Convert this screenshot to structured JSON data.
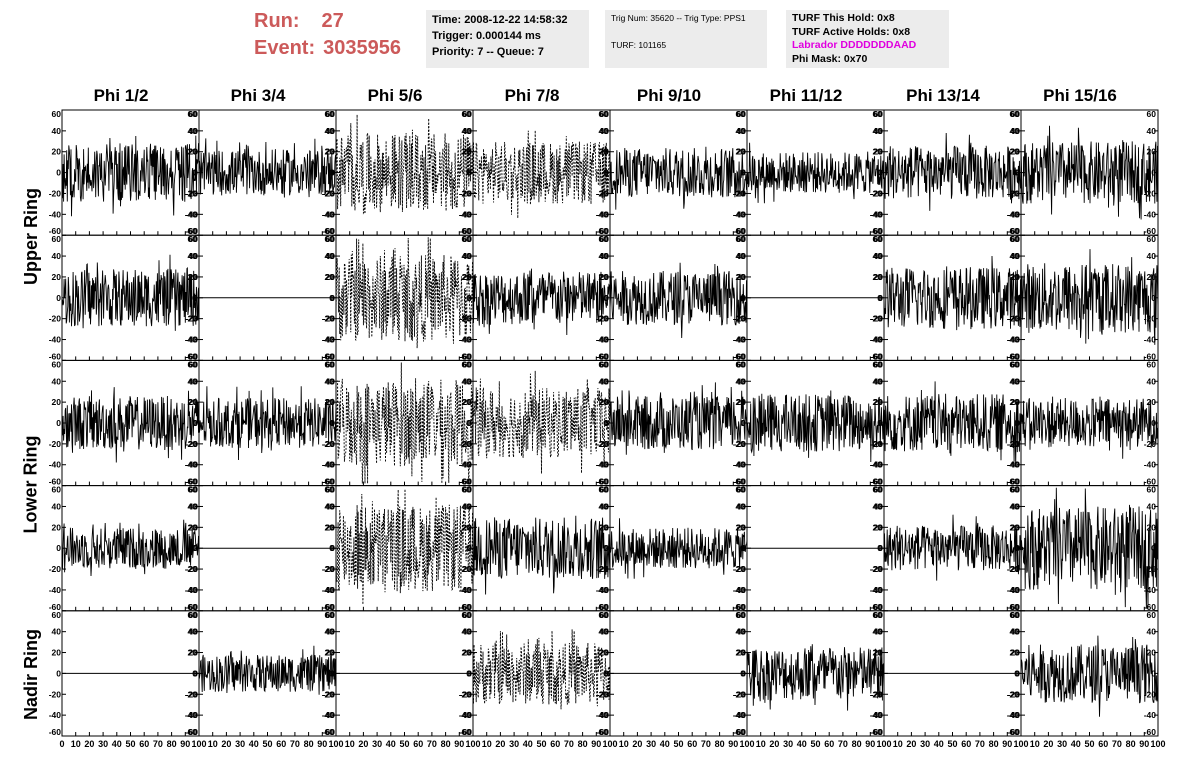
{
  "header": {
    "run_label": "Run:",
    "run_value": "27",
    "event_label": "Event:",
    "event_value": "3035956"
  },
  "info_box_1": {
    "time": "Time: 2008-12-22 14:58:32",
    "trigger": "Trigger: 0.000144 ms",
    "priority": "Priority: 7 -- Queue: 7"
  },
  "info_box_2": {
    "trig": "Trig Num: 35620 -- Trig Type: PPS1",
    "turf": "TURF: 101165"
  },
  "info_box_3": {
    "this_hold": "TURF This Hold: 0x8",
    "active_holds": "TURF Active Holds: 0x8",
    "labrador": "Labrador DDDDDDDAAD",
    "phi_mask": "Phi Mask: 0x70"
  },
  "colors": {
    "run_text": "#cc5a5a",
    "labrador_text": "#e000e0",
    "info_bg": "#ececec",
    "trace": "#000000"
  },
  "columns": [
    "Phi 1/2",
    "Phi 3/4",
    "Phi 5/6",
    "Phi 7/8",
    "Phi 9/10",
    "Phi 11/12",
    "Phi 13/14",
    "Phi 15/16"
  ],
  "ring_labels": [
    "Upper Ring",
    "Lower Ring",
    "Nadir Ring"
  ],
  "chart_data": {
    "type": "line",
    "title": "",
    "xlim": [
      0,
      100
    ],
    "ylim": [
      -60,
      60
    ],
    "x_ticks": [
      0,
      10,
      20,
      30,
      40,
      50,
      60,
      70,
      80,
      90,
      100
    ],
    "y_ticks": [
      -60,
      -40,
      -20,
      0,
      20,
      40,
      60
    ],
    "x_tick_labels_first_column": [
      "0",
      "10",
      "20",
      "30",
      "40",
      "50",
      "60",
      "70",
      "80",
      "90",
      "100"
    ],
    "x_tick_labels_other_columns": [
      "10",
      "20",
      "30",
      "40",
      "50",
      "60",
      "70",
      "80",
      "90",
      "100"
    ],
    "grid": false,
    "rows": [
      {
        "ring": "Upper Ring",
        "panels": [
          {
            "style": "solid",
            "amplitude": 28
          },
          {
            "style": "solid",
            "amplitude": 22
          },
          {
            "style": "dashed",
            "amplitude": 38
          },
          {
            "style": "dashed",
            "amplitude": 30
          },
          {
            "style": "solid",
            "amplitude": 24
          },
          {
            "style": "solid",
            "amplitude": 20
          },
          {
            "style": "solid",
            "amplitude": 26
          },
          {
            "style": "solid",
            "amplitude": 30
          }
        ]
      },
      {
        "ring": "Upper Ring",
        "panels": [
          {
            "style": "solid",
            "amplitude": 28
          },
          {
            "style": "flat",
            "amplitude": 0
          },
          {
            "style": "dashed",
            "amplitude": 42
          },
          {
            "style": "solid",
            "amplitude": 26
          },
          {
            "style": "solid",
            "amplitude": 26
          },
          {
            "style": "flat",
            "amplitude": 0
          },
          {
            "style": "solid",
            "amplitude": 30
          },
          {
            "style": "solid",
            "amplitude": 34
          }
        ]
      },
      {
        "ring": "Lower Ring",
        "panels": [
          {
            "style": "solid",
            "amplitude": 26
          },
          {
            "style": "solid",
            "amplitude": 24
          },
          {
            "style": "dashed",
            "amplitude": 42
          },
          {
            "style": "dashed",
            "amplitude": 34
          },
          {
            "style": "solid",
            "amplitude": 26
          },
          {
            "style": "solid",
            "amplitude": 28
          },
          {
            "style": "solid",
            "amplitude": 28
          },
          {
            "style": "solid",
            "amplitude": 24
          }
        ]
      },
      {
        "ring": "Lower Ring",
        "panels": [
          {
            "style": "solid",
            "amplitude": 20
          },
          {
            "style": "flat",
            "amplitude": 0
          },
          {
            "style": "dashed",
            "amplitude": 42
          },
          {
            "style": "solid",
            "amplitude": 30
          },
          {
            "style": "solid",
            "amplitude": 20
          },
          {
            "style": "flat",
            "amplitude": 0
          },
          {
            "style": "solid",
            "amplitude": 22
          },
          {
            "style": "solid",
            "amplitude": 40
          }
        ]
      },
      {
        "ring": "Nadir Ring",
        "panels": [
          {
            "style": "flat",
            "amplitude": 0
          },
          {
            "style": "solid",
            "amplitude": 18
          },
          {
            "style": "flat",
            "amplitude": 0
          },
          {
            "style": "dashed",
            "amplitude": 30
          },
          {
            "style": "flat",
            "amplitude": 0
          },
          {
            "style": "solid",
            "amplitude": 26
          },
          {
            "style": "flat",
            "amplitude": 0
          },
          {
            "style": "solid",
            "amplitude": 28
          }
        ]
      }
    ]
  }
}
